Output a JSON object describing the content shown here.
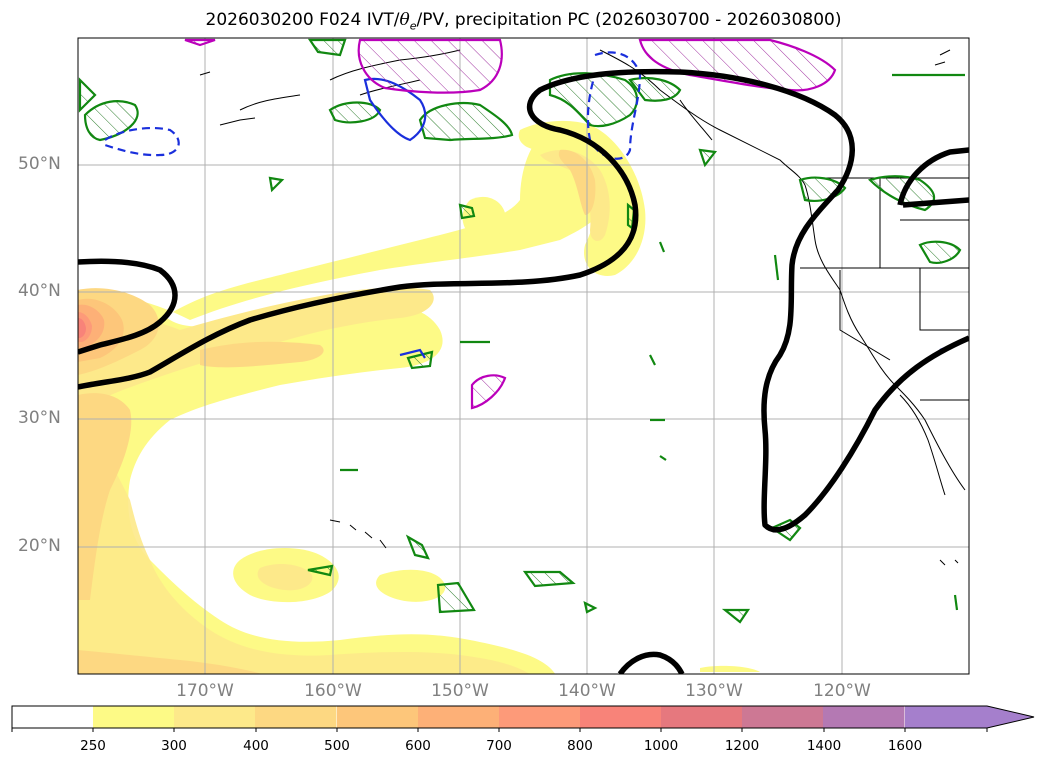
{
  "title": {
    "prefix": "2026030200 F024 IVT/",
    "theta": "θ",
    "theta_sub": "e",
    "suffix": "/PV, precipitation PC (2026030700 - 2026030800)"
  },
  "map": {
    "projection": "PlateCarree",
    "lon_range": [
      -180,
      -110
    ],
    "lat_range": [
      10,
      60
    ],
    "lat_labels": [
      "50°N",
      "40°N",
      "30°N",
      "20°N"
    ],
    "lon_labels": [
      "170°W",
      "160°W",
      "150°W",
      "140°W",
      "130°W",
      "120°W"
    ],
    "gridlines": true
  },
  "colorbar": {
    "ticks": [
      "250",
      "300",
      "400",
      "500",
      "600",
      "700",
      "800",
      "1000",
      "1200",
      "1400",
      "1600"
    ],
    "colors": [
      "#ffffff",
      "#fdfa86",
      "#fde98a",
      "#fdd882",
      "#fdc67a",
      "#fdb077",
      "#fd9a79",
      "#f88379",
      "#e6787e",
      "#cd7894",
      "#b479b3",
      "#a57fcc"
    ],
    "extend": "max"
  },
  "legend_semantics": {
    "ivt_fill": "IVT (kg m-1 s-1) filled contours",
    "theta_e_line": "black thick contour",
    "pv_green": "green hatched contours",
    "pv_blue": "blue dashed contours",
    "pv_magenta": "magenta hatched contours"
  }
}
